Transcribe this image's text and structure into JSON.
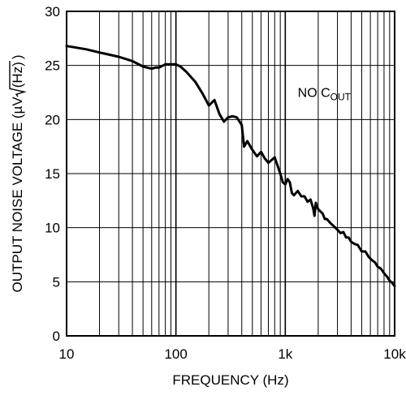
{
  "chart_data": {
    "type": "line",
    "title": "",
    "xlabel": "FREQUENCY (Hz)",
    "ylabel": "OUTPUT NOISE VOLTAGE (µV/√(Hz))",
    "ylabel_parts": {
      "main": "OUTPUT NOISE VOLTAGE (",
      "unit": "µV",
      "radicand": "(Hz)",
      "close": ")"
    },
    "xscale": "log",
    "xlim": [
      10,
      10000
    ],
    "ylim": [
      0,
      30
    ],
    "xticks": [
      {
        "value": 10,
        "label": "10"
      },
      {
        "value": 100,
        "label": "100"
      },
      {
        "value": 1000,
        "label": "1k"
      },
      {
        "value": 10000,
        "label": "10k"
      }
    ],
    "yticks": [
      0,
      5,
      10,
      15,
      20,
      25,
      30
    ],
    "grid": true,
    "annotation": {
      "main": "NO C",
      "sub": "OUT",
      "x": 1300,
      "y": 22.1
    },
    "series": [
      {
        "x": [
          10,
          15,
          20,
          30,
          40,
          50,
          60,
          65,
          70,
          80,
          90,
          100,
          110,
          125,
          150,
          175,
          200,
          225,
          250,
          275,
          300,
          330,
          360,
          400,
          420,
          450,
          500,
          550,
          600,
          650,
          700,
          800,
          900,
          950,
          1000,
          1050,
          1100,
          1150,
          1200,
          1300,
          1400,
          1500,
          1600,
          1700,
          1800,
          1850,
          1900,
          2000,
          2100,
          2200,
          2300,
          2400,
          2500,
          2600,
          2800,
          3000,
          3200,
          3400,
          3600,
          3800,
          4000,
          4300,
          4600,
          5000,
          5400,
          5800,
          6200,
          6600,
          7000,
          7500,
          8000,
          8500,
          9000,
          9500,
          10000
        ],
        "y": [
          26.8,
          26.5,
          26.2,
          25.8,
          25.4,
          24.9,
          24.7,
          24.8,
          24.8,
          25.1,
          25.1,
          25.1,
          24.9,
          24.4,
          23.5,
          22.4,
          21.3,
          21.8,
          20.5,
          19.8,
          20.2,
          20.3,
          20.2,
          19.5,
          17.5,
          18.0,
          17.2,
          16.6,
          17.0,
          16.4,
          16.0,
          16.5,
          15.0,
          14.2,
          14.0,
          14.5,
          14.2,
          13.2,
          13.0,
          13.4,
          12.9,
          12.9,
          12.4,
          12.6,
          11.8,
          11.1,
          12.3,
          11.7,
          11.5,
          11.3,
          10.8,
          10.8,
          10.6,
          10.4,
          10.1,
          9.8,
          9.5,
          9.6,
          9.1,
          9.1,
          8.7,
          8.5,
          8.4,
          7.8,
          7.8,
          7.3,
          7.0,
          6.8,
          6.4,
          6.2,
          5.8,
          5.5,
          5.1,
          4.9,
          4.6
        ]
      }
    ]
  }
}
